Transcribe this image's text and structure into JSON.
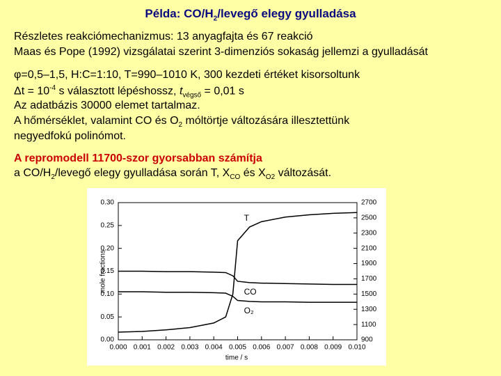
{
  "title": [
    "Példa: CO/H",
    "2",
    "/levegő elegy gyulladása"
  ],
  "lines": [
    [
      "Részletes reakciómechanizmus: 13 anyagfajta és 67 reakció"
    ],
    [
      "Maas és Pope (1992) vizsgálatai szerint 3-dimenziós sokaság jellemzi a gyulladását"
    ],
    [
      "φ=0,5–1,5, H:C=1:10, T=990–1010 K, 300 kezdeti értéket kisorsoltunk"
    ],
    [
      "Δt = 10",
      "-4",
      " s választott lépéshossz, ",
      "t",
      "végső",
      " = 0,01 s"
    ],
    [
      "Az adatbázis 30000 elemet tartalmaz."
    ],
    [
      "A hőmérséklet, valamint CO és O",
      "2",
      " móltörtje változására illesztettünk"
    ],
    [
      "negyedfokú polinómot."
    ],
    [
      "A repromodell 11700-szor gyorsabban számítja"
    ],
    [
      "a CO/H",
      "2",
      "/levegő elegy gyulladása során T, X",
      "CO",
      " és X",
      "O2",
      " változását."
    ]
  ],
  "chart_data": {
    "type": "line",
    "xlabel": "time / s",
    "ylabel": "mole fractions",
    "x": [
      0,
      0.001,
      0.002,
      0.003,
      0.004,
      0.0045,
      0.0048,
      0.005,
      0.0055,
      0.006,
      0.007,
      0.008,
      0.009,
      0.01
    ],
    "series": [
      {
        "name": "T",
        "color": "#000000",
        "axis": "y2",
        "values": [
          1000,
          1010,
          1030,
          1060,
          1120,
          1200,
          1500,
          2200,
          2380,
          2450,
          2510,
          2540,
          2560,
          2570
        ]
      },
      {
        "name": "CO",
        "color": "#000000",
        "values": [
          0.15,
          0.15,
          0.149,
          0.149,
          0.148,
          0.147,
          0.14,
          0.128,
          0.125,
          0.124,
          0.123,
          0.122,
          0.121,
          0.121
        ]
      },
      {
        "name": "O₂",
        "color": "#000000",
        "values": [
          0.105,
          0.105,
          0.104,
          0.104,
          0.103,
          0.102,
          0.095,
          0.086,
          0.084,
          0.083,
          0.083,
          0.082,
          0.082,
          0.082
        ]
      }
    ],
    "xlim": [
      0,
      0.01
    ],
    "xticks": [
      {
        "value": 0,
        "label": "0.000"
      },
      {
        "value": 0.001,
        "label": "0.001"
      },
      {
        "value": 0.002,
        "label": "0.002"
      },
      {
        "value": 0.003,
        "label": "0.003"
      },
      {
        "value": 0.004,
        "label": "0.004"
      },
      {
        "value": 0.005,
        "label": "0.005"
      },
      {
        "value": 0.006,
        "label": "0.006"
      },
      {
        "value": 0.007,
        "label": "0.007"
      },
      {
        "value": 0.008,
        "label": "0.008"
      },
      {
        "value": 0.009,
        "label": "0.009"
      },
      {
        "value": 0.01,
        "label": "0.010"
      }
    ],
    "ylim": [
      0,
      0.3
    ],
    "yticks": [
      {
        "value": 0,
        "label": "0.00"
      },
      {
        "value": 0.05,
        "label": "0.05"
      },
      {
        "value": 0.1,
        "label": "0.10"
      },
      {
        "value": 0.15,
        "label": "0.15"
      },
      {
        "value": 0.2,
        "label": "0.20"
      },
      {
        "value": 0.25,
        "label": "0.25"
      },
      {
        "value": 0.3,
        "label": "0.30"
      }
    ],
    "y2lim": [
      900,
      2700
    ],
    "y2ticks": [
      900,
      1100,
      1300,
      1500,
      1700,
      1900,
      2100,
      2300,
      2500,
      2700
    ]
  }
}
